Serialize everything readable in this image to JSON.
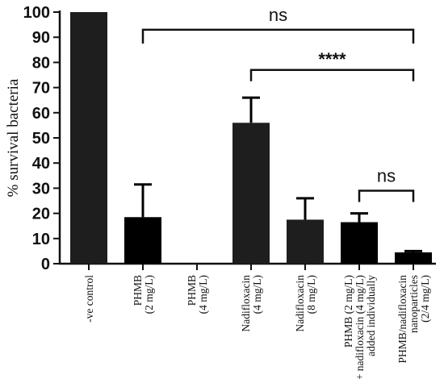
{
  "chart_data": {
    "type": "bar",
    "ylabel": "% survival bacteria",
    "xlabel": "",
    "ylim": [
      0,
      100
    ],
    "yticks": [
      0,
      10,
      20,
      30,
      40,
      50,
      60,
      70,
      80,
      90,
      100
    ],
    "grid": false,
    "categories": [
      [
        "-ve control"
      ],
      [
        "PHMB",
        "(2 mg/L)"
      ],
      [
        "PHMB",
        "(4 mg/L)"
      ],
      [
        "Nadifloxacin",
        "(4 mg/L)"
      ],
      [
        "Nadifloxacin",
        "(8 mg/L)"
      ],
      [
        "PHMB (2 mg/L)",
        "+ nadifloxacin (4 mg/L)",
        "added individually"
      ],
      [
        "PHMB/nadifloxacin",
        "nanoparticles",
        "(2/4 mg/L)"
      ]
    ],
    "values": [
      100,
      18.5,
      0,
      56,
      17.5,
      16.5,
      4.5
    ],
    "errors": [
      0,
      13,
      0,
      10,
      8.5,
      3.5,
      0.5
    ],
    "bar_colors": [
      "#1e1e1e",
      "#000000",
      "#000000",
      "#1e1e1e",
      "#1e1e1e",
      "#000000",
      "#000000"
    ],
    "significance": [
      {
        "from": 1,
        "to": 6,
        "y": 93,
        "drop": 5.5,
        "label": "ns"
      },
      {
        "from": 3,
        "to": 6,
        "y": 77,
        "drop": 4.5,
        "label": "****"
      },
      {
        "from": 5,
        "to": 6,
        "y": 29,
        "drop": 4.5,
        "label": "ns"
      }
    ]
  }
}
